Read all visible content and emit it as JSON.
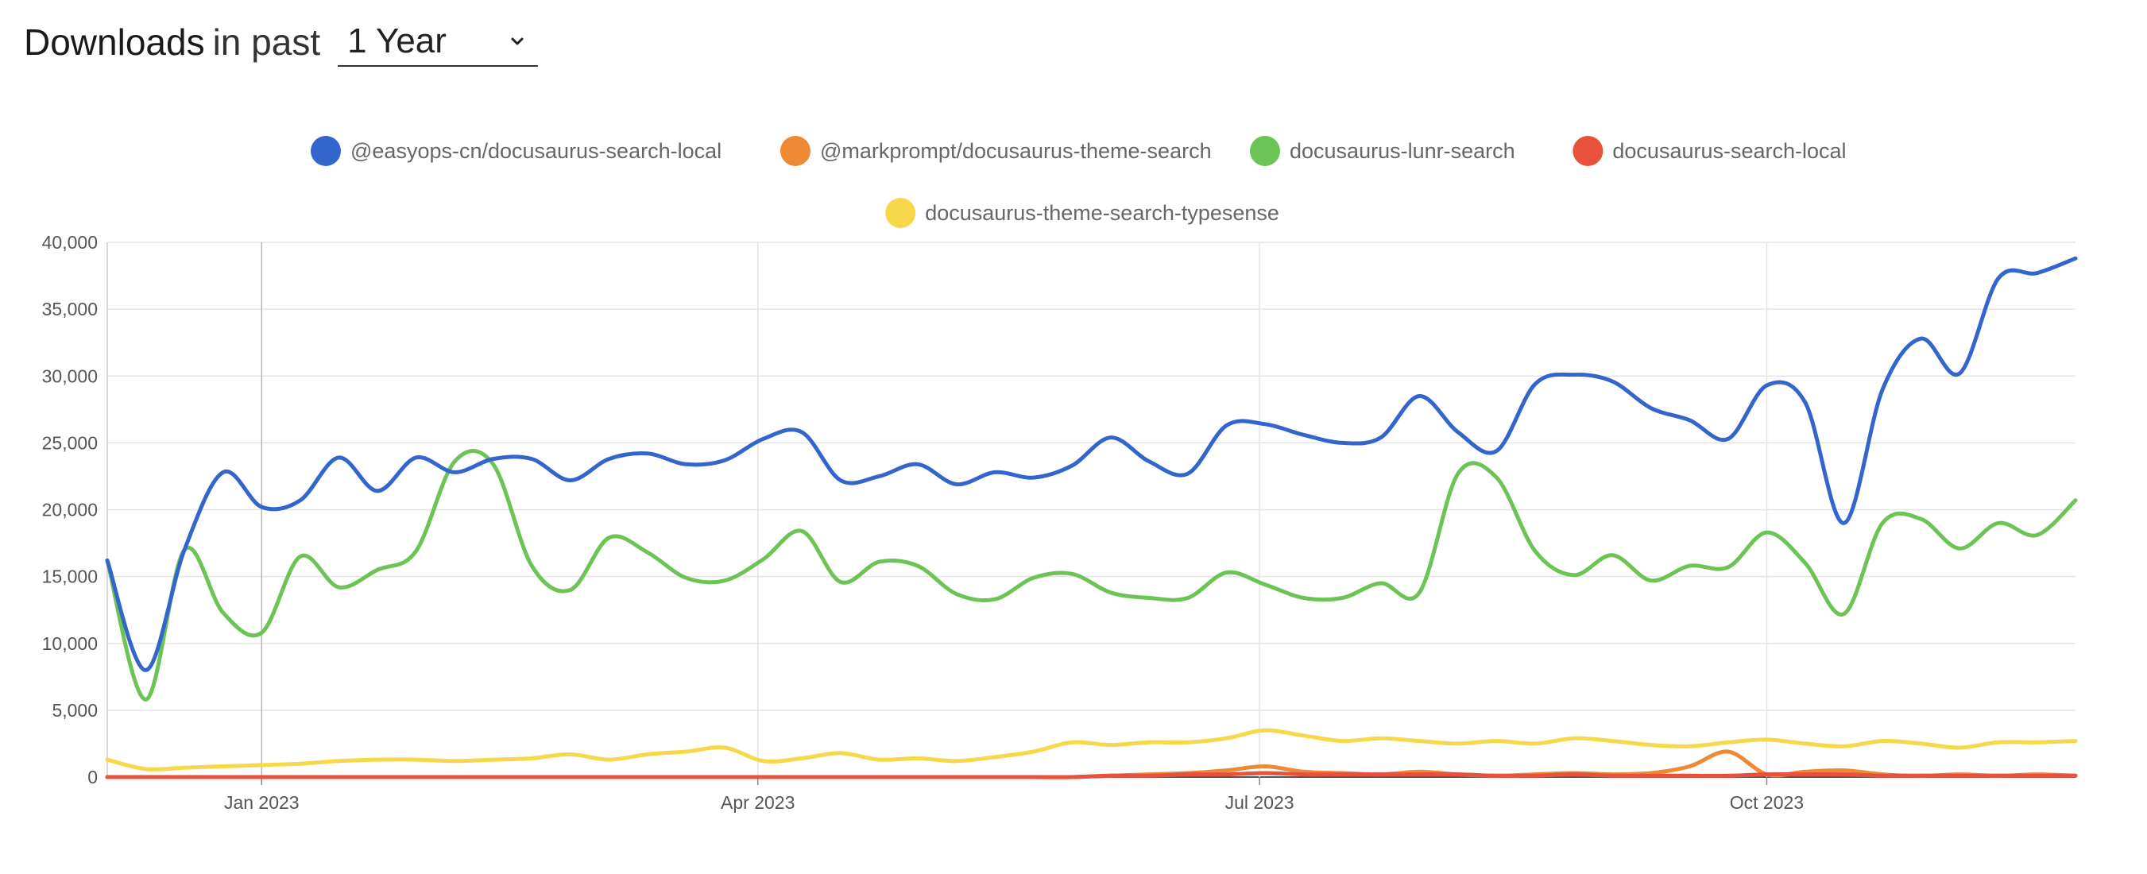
{
  "header": {
    "title": "Downloads",
    "subtitle": "in past",
    "range_value": "1 Year"
  },
  "chart_data": {
    "type": "line",
    "title": "",
    "xlabel": "",
    "ylabel": "",
    "ylim": [
      0,
      40000
    ],
    "y_ticks": [
      0,
      5000,
      10000,
      15000,
      20000,
      25000,
      30000,
      35000,
      40000
    ],
    "y_tick_labels": [
      "0",
      "5,000",
      "10,000",
      "15,000",
      "20,000",
      "25,000",
      "30,000",
      "35,000",
      "40,000"
    ],
    "x_range": [
      "2022-12-04",
      "2023-11-26"
    ],
    "x_tick_labels": [
      {
        "date": "2023-01-01",
        "label": "Jan 2023"
      },
      {
        "date": "2023-04-01",
        "label": "Apr 2023"
      },
      {
        "date": "2023-07-01",
        "label": "Jul 2023"
      },
      {
        "date": "2023-10-01",
        "label": "Oct 2023"
      }
    ],
    "grid": true,
    "legend_position": "top",
    "x": [
      "2022-12-04",
      "2022-12-11",
      "2022-12-18",
      "2022-12-25",
      "2023-01-01",
      "2023-01-08",
      "2023-01-15",
      "2023-01-22",
      "2023-01-29",
      "2023-02-05",
      "2023-02-12",
      "2023-02-19",
      "2023-02-26",
      "2023-03-05",
      "2023-03-12",
      "2023-03-19",
      "2023-03-26",
      "2023-04-02",
      "2023-04-09",
      "2023-04-16",
      "2023-04-23",
      "2023-04-30",
      "2023-05-07",
      "2023-05-14",
      "2023-05-21",
      "2023-05-28",
      "2023-06-04",
      "2023-06-11",
      "2023-06-18",
      "2023-06-25",
      "2023-07-02",
      "2023-07-09",
      "2023-07-16",
      "2023-07-23",
      "2023-07-30",
      "2023-08-06",
      "2023-08-13",
      "2023-08-20",
      "2023-08-27",
      "2023-09-03",
      "2023-09-10",
      "2023-09-17",
      "2023-09-24",
      "2023-10-01",
      "2023-10-08",
      "2023-10-15",
      "2023-10-22",
      "2023-10-29",
      "2023-11-05",
      "2023-11-12",
      "2023-11-19",
      "2023-11-26"
    ],
    "series": [
      {
        "name": "@easyops-cn/docusaurus-search-local",
        "color": "#3366cc",
        "values": [
          16200,
          8000,
          17000,
          22800,
          20200,
          20700,
          23900,
          21400,
          23900,
          22800,
          23800,
          23800,
          22200,
          23800,
          24200,
          23400,
          23700,
          25300,
          25800,
          22200,
          22500,
          23400,
          21900,
          22800,
          22400,
          23300,
          25400,
          23600,
          22700,
          26300,
          26400,
          25600,
          25000,
          25400,
          28500,
          25800,
          24400,
          29400,
          30100,
          29600,
          27600,
          26700,
          25300,
          29300,
          28000,
          19000,
          29000,
          32800,
          30200,
          37300,
          37700,
          38800
        ]
      },
      {
        "name": "@markprompt/docusaurus-theme-search",
        "color": "#ef8a34",
        "values": [
          0,
          0,
          0,
          0,
          0,
          0,
          0,
          0,
          0,
          0,
          0,
          0,
          0,
          0,
          0,
          0,
          0,
          0,
          0,
          0,
          0,
          0,
          0,
          0,
          0,
          0,
          100,
          200,
          300,
          500,
          800,
          400,
          300,
          200,
          400,
          200,
          100,
          200,
          300,
          200,
          300,
          800,
          1900,
          200,
          400,
          500,
          200,
          100,
          200,
          100,
          200,
          100
        ]
      },
      {
        "name": "docusaurus-lunr-search",
        "color": "#6cc455",
        "values": [
          16200,
          5800,
          17000,
          12300,
          10800,
          16500,
          14200,
          15500,
          16900,
          23600,
          23400,
          15800,
          14000,
          17900,
          16800,
          14900,
          14700,
          16300,
          18400,
          14600,
          16100,
          15800,
          13700,
          13300,
          14900,
          15200,
          13800,
          13400,
          13400,
          15300,
          14400,
          13400,
          13400,
          14500,
          13800,
          22700,
          22400,
          16900,
          15100,
          16600,
          14700,
          15800,
          15700,
          18300,
          16000,
          12200,
          19000,
          19300,
          17100,
          19000,
          18100,
          20700
        ]
      },
      {
        "name": "docusaurus-search-local",
        "color": "#e8513b",
        "values": [
          0,
          0,
          0,
          0,
          0,
          0,
          0,
          0,
          0,
          0,
          0,
          0,
          0,
          0,
          0,
          0,
          0,
          0,
          0,
          0,
          0,
          0,
          0,
          0,
          0,
          0,
          100,
          100,
          200,
          200,
          300,
          200,
          200,
          200,
          200,
          200,
          100,
          100,
          200,
          100,
          100,
          100,
          100,
          200,
          200,
          200,
          100,
          100,
          100,
          100,
          100,
          100
        ]
      },
      {
        "name": "docusaurus-theme-search-typesense",
        "color": "#f7d84a",
        "values": [
          1300,
          600,
          700,
          800,
          900,
          1000,
          1200,
          1300,
          1300,
          1200,
          1300,
          1400,
          1700,
          1300,
          1700,
          1900,
          2200,
          1200,
          1400,
          1800,
          1300,
          1400,
          1200,
          1500,
          1900,
          2600,
          2400,
          2600,
          2600,
          2900,
          3500,
          3100,
          2700,
          2900,
          2700,
          2500,
          2700,
          2500,
          2900,
          2700,
          2400,
          2300,
          2600,
          2800,
          2500,
          2300,
          2700,
          2500,
          2200,
          2600,
          2600,
          2700
        ]
      }
    ]
  }
}
